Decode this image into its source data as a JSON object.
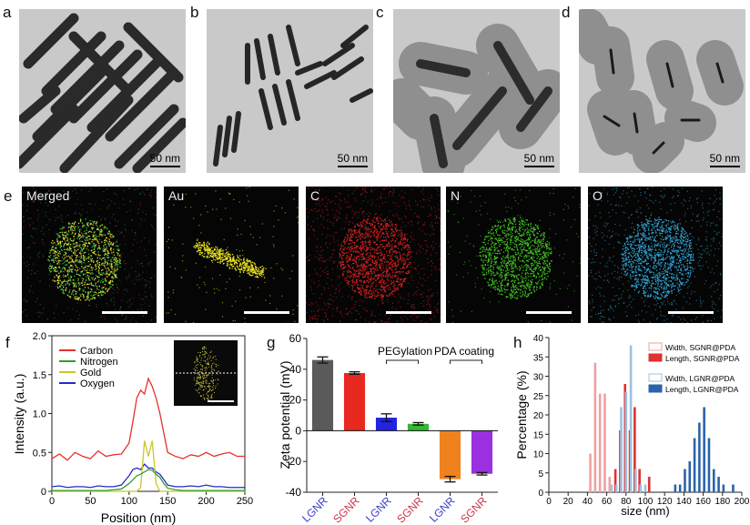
{
  "panels": {
    "a": {
      "label": "a",
      "scale": "50 nm"
    },
    "b": {
      "label": "b",
      "scale": "50 nm"
    },
    "c": {
      "label": "c",
      "scale": "50 nm"
    },
    "d": {
      "label": "d",
      "scale": "50 nm"
    },
    "e": {
      "label": "e",
      "maps": [
        "Merged",
        "Au",
        "C",
        "N",
        "O"
      ],
      "colors": [
        "#c8c040",
        "#e8e020",
        "#d02020",
        "#40c020",
        "#30a0d0"
      ]
    },
    "f": {
      "label": "f"
    },
    "g": {
      "label": "g"
    },
    "h": {
      "label": "h"
    }
  },
  "chart_data": [
    {
      "type": "line",
      "panel": "f",
      "xlabel": "Position (nm)",
      "ylabel": "Intensity (a.u.)",
      "xlim": [
        0,
        250
      ],
      "ylim": [
        0,
        2.0
      ],
      "xticks": [
        "0",
        "50",
        "100",
        "150",
        "200",
        "250"
      ],
      "yticks": [
        "0",
        "0.5",
        "1.0",
        "1.5",
        "2.0"
      ],
      "legend": "top-left",
      "inset": "line scan on merged EDS map",
      "x": [
        0,
        10,
        20,
        30,
        40,
        50,
        60,
        70,
        80,
        90,
        100,
        105,
        110,
        115,
        120,
        125,
        130,
        135,
        140,
        145,
        150,
        160,
        170,
        180,
        190,
        200,
        210,
        220,
        230,
        240,
        250
      ],
      "series": [
        {
          "name": "Carbon",
          "color": "#e8302a",
          "values": [
            0.42,
            0.48,
            0.4,
            0.5,
            0.45,
            0.42,
            0.52,
            0.45,
            0.47,
            0.48,
            0.62,
            0.9,
            1.2,
            1.3,
            1.25,
            1.45,
            1.35,
            1.2,
            1.0,
            0.75,
            0.5,
            0.45,
            0.42,
            0.47,
            0.45,
            0.5,
            0.45,
            0.48,
            0.5,
            0.45,
            0.45
          ]
        },
        {
          "name": "Nitrogen",
          "color": "#2e9e2e",
          "values": [
            0.01,
            0.01,
            0.01,
            0.01,
            0.01,
            0.01,
            0.01,
            0.01,
            0.02,
            0.03,
            0.1,
            0.15,
            0.2,
            0.22,
            0.25,
            0.28,
            0.27,
            0.22,
            0.18,
            0.1,
            0.04,
            0.02,
            0.01,
            0.01,
            0.01,
            0.01,
            0.01,
            0.01,
            0.01,
            0.01,
            0.01
          ]
        },
        {
          "name": "Gold",
          "color": "#c8c82a",
          "values": [
            0,
            0,
            0,
            0,
            0,
            0,
            0,
            0,
            0,
            0,
            0,
            0,
            0,
            0.05,
            0.65,
            0.45,
            0.65,
            0.1,
            0,
            0,
            0,
            0,
            0,
            0,
            0,
            0,
            0,
            0,
            0,
            0,
            0
          ]
        },
        {
          "name": "Oxygen",
          "color": "#2a2ac8",
          "values": [
            0.06,
            0.07,
            0.05,
            0.06,
            0.06,
            0.05,
            0.07,
            0.06,
            0.06,
            0.08,
            0.2,
            0.28,
            0.3,
            0.28,
            0.35,
            0.3,
            0.3,
            0.25,
            0.22,
            0.15,
            0.08,
            0.06,
            0.06,
            0.07,
            0.06,
            0.08,
            0.06,
            0.06,
            0.05,
            0.05,
            0.05
          ]
        }
      ]
    },
    {
      "type": "bar",
      "panel": "g",
      "ylabel": "Zeta potential (mV)",
      "ylim": [
        -40,
        60
      ],
      "yticks": [
        "-40",
        "-20",
        "0",
        "20",
        "40",
        "60"
      ],
      "categories": [
        "LGNR",
        "SGNR",
        "LGNR",
        "SGNR",
        "LGNR",
        "SGNR"
      ],
      "category_colors": [
        "#3a3ad0",
        "#d0304a",
        "#3a3ad0",
        "#d0304a",
        "#3a3ad0",
        "#d0304a"
      ],
      "values": [
        46,
        37.5,
        8.5,
        4.5,
        -31.5,
        -28
      ],
      "errors": [
        2,
        0.8,
        2.5,
        0.8,
        1.8,
        0.8
      ],
      "bar_colors": [
        "#5a5a5a",
        "#e8291f",
        "#2323e0",
        "#33b833",
        "#f0821e",
        "#9b30e0"
      ],
      "annotations": [
        "PEGylation",
        "PDA coating"
      ]
    },
    {
      "type": "bar",
      "panel": "h",
      "xlabel": "size (nm)",
      "ylabel": "Percentage (%)",
      "xlim": [
        0,
        200
      ],
      "ylim": [
        0,
        40
      ],
      "xticks": [
        "0",
        "20",
        "40",
        "60",
        "80",
        "100",
        "120",
        "140",
        "160",
        "180",
        "200"
      ],
      "yticks": [
        "0",
        "5",
        "10",
        "15",
        "20",
        "25",
        "30",
        "35",
        "40"
      ],
      "legend": "top-right",
      "series": [
        {
          "name": "Width, SGNR@PDA",
          "color": "#f2a0a0",
          "x": [
            43,
            48,
            53,
            58,
            63
          ],
          "values": [
            10,
            33.5,
            25.5,
            25.5,
            4
          ]
        },
        {
          "name": "Length, SGNR@PDA",
          "color": "#e03030",
          "x": [
            69,
            74,
            79,
            84,
            89,
            94,
            104
          ],
          "values": [
            6,
            16,
            28,
            16,
            22,
            6,
            4
          ]
        },
        {
          "name": "Width, LGNR@PDA",
          "color": "#9cc0e0",
          "x": [
            65,
            70,
            75,
            80,
            85,
            90,
            95,
            100
          ],
          "values": [
            2,
            2,
            22,
            26,
            38,
            6,
            2,
            2
          ]
        },
        {
          "name": "Length, LGNR@PDA",
          "color": "#2a64a8",
          "x": [
            131,
            136,
            141,
            146,
            151,
            156,
            161,
            166,
            171,
            176,
            181,
            191
          ],
          "values": [
            2,
            2,
            6,
            8,
            14,
            18,
            22,
            14,
            6,
            4,
            2,
            2
          ]
        }
      ]
    }
  ]
}
